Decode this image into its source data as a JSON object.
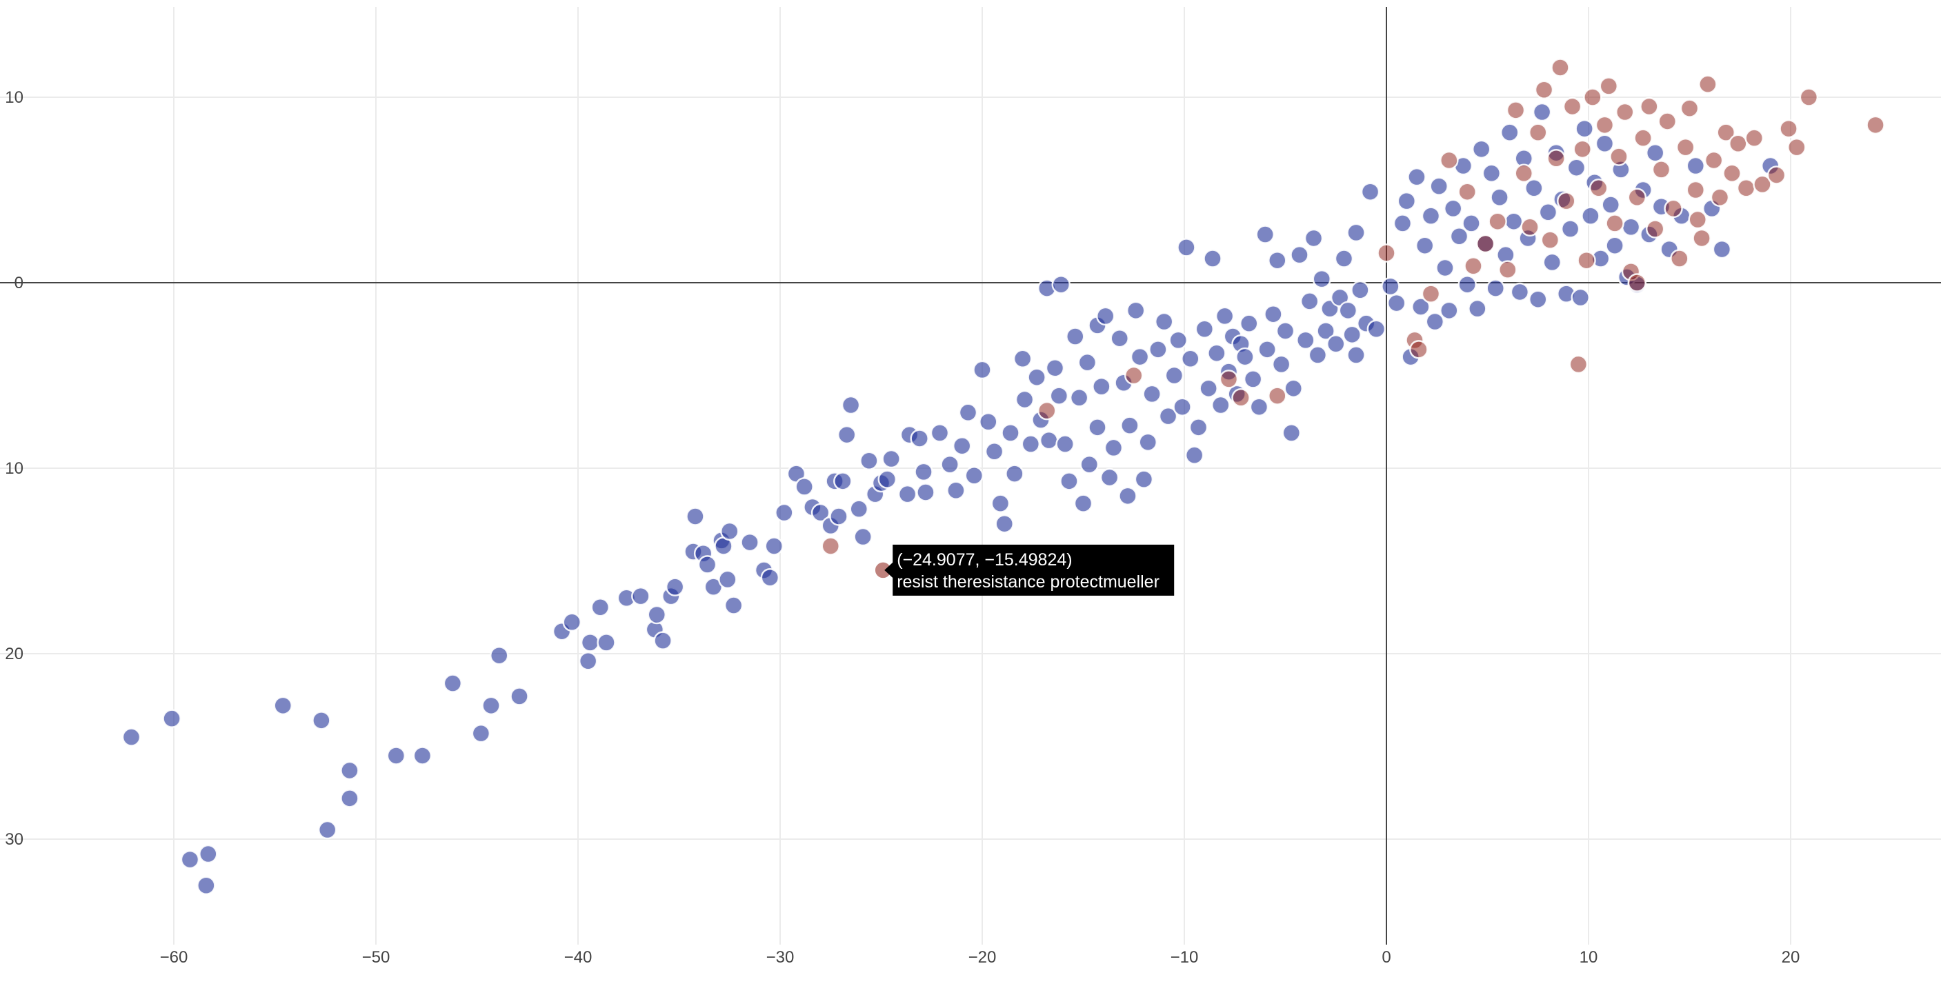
{
  "colors": {
    "series_blue": "#23349a",
    "series_red": "#8b1c13",
    "grid": "#ebebeb",
    "zeroline": "#444444",
    "tooltip_bg": "#000000",
    "tooltip_text": "#ffffff"
  },
  "chart_data": {
    "type": "scatter",
    "title": "",
    "xlabel": "",
    "ylabel": "",
    "xlim": [
      -68,
      27.5
    ],
    "ylim": [
      -37,
      14.5
    ],
    "y_reversed_display": false,
    "x_ticks": [
      {
        "value": -60,
        "label": "−60"
      },
      {
        "value": -50,
        "label": "−50"
      },
      {
        "value": -40,
        "label": "−40"
      },
      {
        "value": -30,
        "label": "−30"
      },
      {
        "value": -20,
        "label": "−20"
      },
      {
        "value": -10,
        "label": "−10"
      },
      {
        "value": 0,
        "label": "0"
      },
      {
        "value": 10,
        "label": "10"
      },
      {
        "value": 20,
        "label": "20"
      }
    ],
    "y_ticks": [
      {
        "value": 10,
        "label": "10"
      },
      {
        "value": 0,
        "label": "0"
      },
      {
        "value": -10,
        "label": "10"
      },
      {
        "value": -20,
        "label": "20"
      },
      {
        "value": -30,
        "label": "30"
      }
    ],
    "grid": true,
    "legend": "none",
    "series": [
      {
        "color": "#23349a",
        "opacity": 0.6,
        "points": [
          [
            -62.1,
            -24.5
          ],
          [
            -60.1,
            -23.5
          ],
          [
            -59.2,
            -31.1
          ],
          [
            -58.3,
            -30.8
          ],
          [
            -58.4,
            -32.5
          ],
          [
            -54.6,
            -22.8
          ],
          [
            -52.7,
            -23.6
          ],
          [
            -52.4,
            -29.5
          ],
          [
            -51.3,
            -26.3
          ],
          [
            -51.3,
            -27.8
          ],
          [
            -49.0,
            -25.5
          ],
          [
            -47.7,
            -25.5
          ],
          [
            -46.2,
            -21.6
          ],
          [
            -44.8,
            -24.3
          ],
          [
            -44.3,
            -22.8
          ],
          [
            -43.9,
            -20.1
          ],
          [
            -42.9,
            -22.3
          ],
          [
            -40.8,
            -18.8
          ],
          [
            -40.3,
            -18.3
          ],
          [
            -39.5,
            -20.4
          ],
          [
            -39.4,
            -19.4
          ],
          [
            -38.9,
            -17.5
          ],
          [
            -38.6,
            -19.4
          ],
          [
            -37.6,
            -17.0
          ],
          [
            -36.9,
            -16.9
          ],
          [
            -36.2,
            -18.7
          ],
          [
            -36.1,
            -17.9
          ],
          [
            -35.8,
            -19.3
          ],
          [
            -35.4,
            -16.9
          ],
          [
            -35.2,
            -16.4
          ],
          [
            -34.2,
            -12.6
          ],
          [
            -34.3,
            -14.5
          ],
          [
            -33.8,
            -14.6
          ],
          [
            -33.6,
            -15.2
          ],
          [
            -33.3,
            -16.4
          ],
          [
            -32.9,
            -13.9
          ],
          [
            -32.8,
            -14.2
          ],
          [
            -32.6,
            -16.0
          ],
          [
            -32.5,
            -13.4
          ],
          [
            -32.3,
            -17.4
          ],
          [
            -31.5,
            -14.0
          ],
          [
            -30.8,
            -15.5
          ],
          [
            -30.5,
            -15.9
          ],
          [
            -30.3,
            -14.2
          ],
          [
            -29.8,
            -12.4
          ],
          [
            -29.2,
            -10.3
          ],
          [
            -28.8,
            -11.0
          ],
          [
            -28.4,
            -12.1
          ],
          [
            -28.0,
            -12.4
          ],
          [
            -27.5,
            -13.1
          ],
          [
            -27.3,
            -10.7
          ],
          [
            -27.1,
            -12.6
          ],
          [
            -26.9,
            -10.7
          ],
          [
            -26.7,
            -8.2
          ],
          [
            -26.5,
            -6.6
          ],
          [
            -26.1,
            -12.2
          ],
          [
            -25.9,
            -13.7
          ],
          [
            -25.6,
            -9.6
          ],
          [
            -25.3,
            -11.4
          ],
          [
            -25.0,
            -10.8
          ],
          [
            -24.5,
            -9.5
          ],
          [
            -24.7,
            -10.6
          ],
          [
            -23.7,
            -11.4
          ],
          [
            -23.6,
            -8.2
          ],
          [
            -23.1,
            -8.4
          ],
          [
            -22.9,
            -10.2
          ],
          [
            -22.8,
            -11.3
          ],
          [
            -22.1,
            -8.1
          ],
          [
            -21.6,
            -9.8
          ],
          [
            -21.3,
            -11.2
          ],
          [
            -21.0,
            -8.8
          ],
          [
            -20.7,
            -7.0
          ],
          [
            -20.4,
            -10.4
          ],
          [
            -20.0,
            -4.7
          ],
          [
            -19.7,
            -7.5
          ],
          [
            -19.4,
            -9.1
          ],
          [
            -19.1,
            -11.9
          ],
          [
            -18.9,
            -13.0
          ],
          [
            -18.6,
            -8.1
          ],
          [
            -18.4,
            -10.3
          ],
          [
            -18.0,
            -4.1
          ],
          [
            -17.9,
            -6.3
          ],
          [
            -17.6,
            -8.7
          ],
          [
            -17.3,
            -5.1
          ],
          [
            -17.1,
            -7.4
          ],
          [
            -16.8,
            -0.3
          ],
          [
            -16.7,
            -8.5
          ],
          [
            -16.4,
            -4.6
          ],
          [
            -16.2,
            -6.1
          ],
          [
            -16.1,
            -0.1
          ],
          [
            -15.9,
            -8.7
          ],
          [
            -15.7,
            -10.7
          ],
          [
            -15.4,
            -2.9
          ],
          [
            -15.2,
            -6.2
          ],
          [
            -15.0,
            -11.9
          ],
          [
            -14.8,
            -4.3
          ],
          [
            -14.7,
            -9.8
          ],
          [
            -14.3,
            -2.3
          ],
          [
            -14.3,
            -7.8
          ],
          [
            -14.1,
            -5.6
          ],
          [
            -13.9,
            -1.8
          ],
          [
            -13.7,
            -10.5
          ],
          [
            -13.5,
            -8.9
          ],
          [
            -13.2,
            -3.0
          ],
          [
            -13.0,
            -5.4
          ],
          [
            -12.8,
            -11.5
          ],
          [
            -12.7,
            -7.7
          ],
          [
            -12.4,
            -1.5
          ],
          [
            -12.2,
            -4.0
          ],
          [
            -12.0,
            -10.6
          ],
          [
            -11.8,
            -8.6
          ],
          [
            -11.6,
            -6.0
          ],
          [
            -11.3,
            -3.6
          ],
          [
            -11.0,
            -2.1
          ],
          [
            -10.8,
            -7.2
          ],
          [
            -10.5,
            -5.0
          ],
          [
            -10.3,
            -3.1
          ],
          [
            -10.1,
            -6.7
          ],
          [
            -9.9,
            1.9
          ],
          [
            -9.7,
            -4.1
          ],
          [
            -9.5,
            -9.3
          ],
          [
            -9.3,
            -7.8
          ],
          [
            -9.0,
            -2.5
          ],
          [
            -8.8,
            -5.7
          ],
          [
            -8.6,
            1.3
          ],
          [
            -8.4,
            -3.8
          ],
          [
            -8.2,
            -6.6
          ],
          [
            -8.0,
            -1.8
          ],
          [
            -7.8,
            -4.8
          ],
          [
            -7.6,
            -2.9
          ],
          [
            -7.4,
            -6.0
          ],
          [
            -7.2,
            -3.3
          ],
          [
            -7.0,
            -4.0
          ],
          [
            -6.8,
            -2.2
          ],
          [
            -6.6,
            -5.2
          ],
          [
            -6.3,
            -6.7
          ],
          [
            -6.0,
            2.6
          ],
          [
            -5.9,
            -3.6
          ],
          [
            -5.6,
            -1.7
          ],
          [
            -5.4,
            1.2
          ],
          [
            -5.2,
            -4.4
          ],
          [
            -5.0,
            -2.6
          ],
          [
            -4.7,
            -8.1
          ],
          [
            -4.6,
            -5.7
          ],
          [
            -4.3,
            1.5
          ],
          [
            -4.0,
            -3.1
          ],
          [
            -3.8,
            -1.0
          ],
          [
            -3.6,
            2.4
          ],
          [
            -3.4,
            -3.9
          ],
          [
            -3.2,
            0.2
          ],
          [
            -3.0,
            -2.6
          ],
          [
            -2.8,
            -1.4
          ],
          [
            -2.5,
            -3.3
          ],
          [
            -2.3,
            -0.8
          ],
          [
            -2.1,
            1.3
          ],
          [
            -1.9,
            -1.5
          ],
          [
            -1.7,
            -2.8
          ],
          [
            -1.5,
            2.7
          ],
          [
            -1.3,
            -0.4
          ],
          [
            -1.0,
            -2.2
          ],
          [
            -0.8,
            4.9
          ],
          [
            -0.5,
            -2.5
          ],
          [
            0.2,
            -0.2
          ],
          [
            0.5,
            -1.1
          ],
          [
            0.8,
            3.2
          ],
          [
            1.0,
            4.4
          ],
          [
            1.2,
            -4.0
          ],
          [
            1.5,
            5.7
          ],
          [
            1.7,
            -1.3
          ],
          [
            1.9,
            2.0
          ],
          [
            2.2,
            3.6
          ],
          [
            2.4,
            -2.1
          ],
          [
            2.6,
            5.2
          ],
          [
            2.9,
            0.8
          ],
          [
            3.1,
            -1.5
          ],
          [
            3.3,
            4.0
          ],
          [
            3.6,
            2.5
          ],
          [
            3.8,
            6.3
          ],
          [
            4.0,
            -0.1
          ],
          [
            4.2,
            3.2
          ],
          [
            4.5,
            -1.4
          ],
          [
            4.7,
            7.2
          ],
          [
            4.9,
            2.1
          ],
          [
            5.2,
            5.9
          ],
          [
            5.4,
            -0.3
          ],
          [
            5.6,
            4.6
          ],
          [
            5.9,
            1.5
          ],
          [
            6.1,
            8.1
          ],
          [
            6.3,
            3.3
          ],
          [
            6.6,
            -0.5
          ],
          [
            6.8,
            6.7
          ],
          [
            7.0,
            2.4
          ],
          [
            7.3,
            5.1
          ],
          [
            7.5,
            -0.9
          ],
          [
            7.7,
            9.2
          ],
          [
            8.0,
            3.8
          ],
          [
            8.2,
            1.1
          ],
          [
            8.4,
            7.0
          ],
          [
            8.7,
            4.5
          ],
          [
            8.9,
            -0.6
          ],
          [
            9.1,
            2.9
          ],
          [
            9.4,
            6.2
          ],
          [
            9.6,
            -0.8
          ],
          [
            9.8,
            8.3
          ],
          [
            10.1,
            3.6
          ],
          [
            10.3,
            5.4
          ],
          [
            10.6,
            1.3
          ],
          [
            10.8,
            7.5
          ],
          [
            11.1,
            4.2
          ],
          [
            11.3,
            2.0
          ],
          [
            11.6,
            6.1
          ],
          [
            11.9,
            0.3
          ],
          [
            12.1,
            3.0
          ],
          [
            12.4,
            -0.1
          ],
          [
            12.7,
            5.0
          ],
          [
            13.0,
            2.6
          ],
          [
            13.3,
            7.0
          ],
          [
            13.6,
            4.1
          ],
          [
            14.0,
            1.8
          ],
          [
            14.6,
            3.6
          ],
          [
            15.3,
            6.3
          ],
          [
            16.1,
            4.0
          ],
          [
            16.6,
            1.8
          ],
          [
            19.0,
            6.3
          ],
          [
            -1.5,
            -3.9
          ]
        ]
      },
      {
        "color": "#8b1c13",
        "opacity": 0.5,
        "points": [
          [
            -27.5,
            -14.2
          ],
          [
            -16.8,
            -6.9
          ],
          [
            -12.5,
            -5.0
          ],
          [
            -7.8,
            -5.2
          ],
          [
            -7.2,
            -6.2
          ],
          [
            -5.4,
            -6.1
          ],
          [
            0.0,
            1.6
          ],
          [
            1.4,
            -3.1
          ],
          [
            1.6,
            -3.6
          ],
          [
            2.2,
            -0.6
          ],
          [
            3.1,
            6.6
          ],
          [
            4.0,
            4.9
          ],
          [
            4.3,
            0.9
          ],
          [
            4.9,
            2.1
          ],
          [
            5.5,
            3.3
          ],
          [
            6.0,
            0.7
          ],
          [
            6.4,
            9.3
          ],
          [
            6.8,
            5.9
          ],
          [
            7.1,
            3.0
          ],
          [
            7.5,
            8.1
          ],
          [
            7.8,
            10.4
          ],
          [
            8.1,
            2.3
          ],
          [
            8.4,
            6.7
          ],
          [
            8.6,
            11.6
          ],
          [
            8.9,
            4.4
          ],
          [
            9.2,
            9.5
          ],
          [
            9.5,
            -4.4
          ],
          [
            9.7,
            7.2
          ],
          [
            9.9,
            1.2
          ],
          [
            10.2,
            10.0
          ],
          [
            10.5,
            5.1
          ],
          [
            10.8,
            8.5
          ],
          [
            11.0,
            10.6
          ],
          [
            11.3,
            3.2
          ],
          [
            11.5,
            6.8
          ],
          [
            11.8,
            9.2
          ],
          [
            12.1,
            0.6
          ],
          [
            12.4,
            4.6
          ],
          [
            12.7,
            7.8
          ],
          [
            13.0,
            9.5
          ],
          [
            13.3,
            2.9
          ],
          [
            13.6,
            6.1
          ],
          [
            13.9,
            8.7
          ],
          [
            14.2,
            4.0
          ],
          [
            14.5,
            1.3
          ],
          [
            14.8,
            7.3
          ],
          [
            15.0,
            9.4
          ],
          [
            15.3,
            5.0
          ],
          [
            15.6,
            2.4
          ],
          [
            15.9,
            10.7
          ],
          [
            16.2,
            6.6
          ],
          [
            16.5,
            4.6
          ],
          [
            16.8,
            8.1
          ],
          [
            17.1,
            5.9
          ],
          [
            17.4,
            7.5
          ],
          [
            17.8,
            5.1
          ],
          [
            18.2,
            7.8
          ],
          [
            18.6,
            5.3
          ],
          [
            19.3,
            5.8
          ],
          [
            19.9,
            8.3
          ],
          [
            20.3,
            7.3
          ],
          [
            20.9,
            10.0
          ],
          [
            24.2,
            8.5
          ],
          [
            12.4,
            0.0
          ],
          [
            15.4,
            3.4
          ]
        ]
      }
    ],
    "hovered_point": {
      "x": -24.9077,
      "y": -15.49824,
      "series_color": "#8b1c13"
    }
  },
  "tooltip": {
    "coords": "(−24.9077, −15.49824)",
    "label": "resist theresistance protectmueller"
  }
}
